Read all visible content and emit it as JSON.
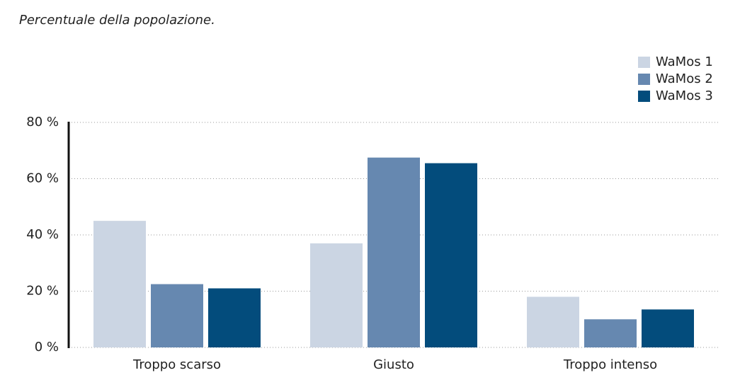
{
  "chart_data": {
    "type": "bar",
    "subtitle": "Percentuale della popolazione.",
    "categories": [
      "Troppo scarso",
      "Giusto",
      "Troppo intenso"
    ],
    "series": [
      {
        "name": "WaMos 1",
        "color": "#cbd5e3",
        "values": [
          45,
          37,
          18
        ]
      },
      {
        "name": "WaMos 2",
        "color": "#6688b0",
        "values": [
          22.5,
          67.5,
          10
        ]
      },
      {
        "name": "WaMos 3",
        "color": "#034c7c",
        "values": [
          21,
          65.5,
          13.5
        ]
      }
    ],
    "ylim": [
      0,
      80
    ],
    "yticks": [
      {
        "value": 0,
        "label": "0 %"
      },
      {
        "value": 20,
        "label": "20 %"
      },
      {
        "value": 40,
        "label": "40 %"
      },
      {
        "value": 60,
        "label": "60 %"
      },
      {
        "value": 80,
        "label": "80 %"
      }
    ],
    "grid": true,
    "legend": "top-right"
  }
}
